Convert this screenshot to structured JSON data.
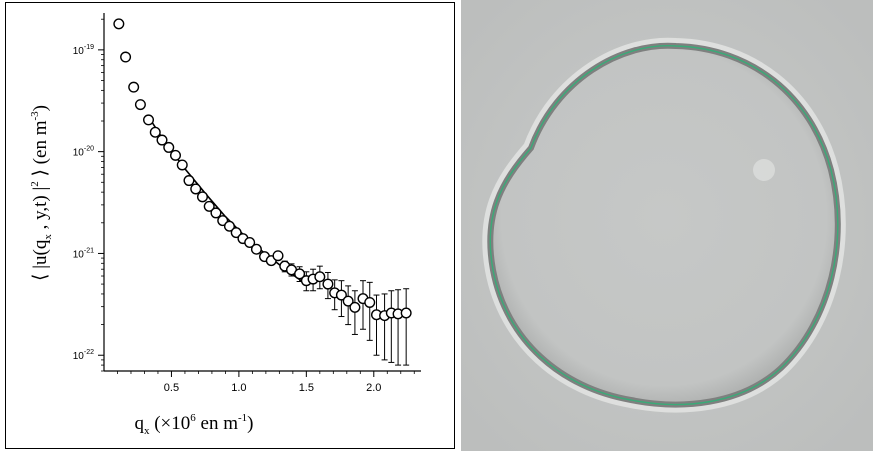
{
  "chart_data": {
    "type": "scatter",
    "title": "",
    "xlabel": {
      "base": "q",
      "sub": "x",
      "open": " (×10",
      "sup": "6",
      "mid": " en m",
      "sup2": "-1",
      "close": ")"
    },
    "ylabel": {
      "open": "⟨ |u(q",
      "sub": "x",
      "mid": " , y,t) |",
      "sup": "2",
      "close": " ⟩  (en m",
      "sup2": "-3",
      "end": ")"
    },
    "xlim": [
      0,
      2.35
    ],
    "ylim": [
      7e-23,
      2.2e-19
    ],
    "y_scale": "log",
    "x_ticks": [
      "0.5",
      "1.0",
      "1.5",
      "2.0"
    ],
    "y_ticks": [
      {
        "base": "10",
        "exp": "-19",
        "value": 1e-19
      },
      {
        "base": "10",
        "exp": "-20",
        "value": 1e-20
      },
      {
        "base": "10",
        "exp": "-21",
        "value": 1e-21
      },
      {
        "base": "10",
        "exp": "-22",
        "value": 1e-22
      }
    ],
    "points": [
      {
        "x": 0.11,
        "y": 1.8e-19
      },
      {
        "x": 0.16,
        "y": 8.5e-20
      },
      {
        "x": 0.22,
        "y": 4.3e-20
      },
      {
        "x": 0.27,
        "y": 2.9e-20
      },
      {
        "x": 0.33,
        "y": 2.05e-20
      },
      {
        "x": 0.38,
        "y": 1.55e-20
      },
      {
        "x": 0.43,
        "y": 1.3e-20
      },
      {
        "x": 0.48,
        "y": 1.1e-20
      },
      {
        "x": 0.53,
        "y": 9.2e-21
      },
      {
        "x": 0.58,
        "y": 7.4e-21
      },
      {
        "x": 0.63,
        "y": 5.2e-21
      },
      {
        "x": 0.68,
        "y": 4.3e-21
      },
      {
        "x": 0.73,
        "y": 3.6e-21
      },
      {
        "x": 0.78,
        "y": 2.9e-21
      },
      {
        "x": 0.83,
        "y": 2.5e-21
      },
      {
        "x": 0.88,
        "y": 2.1e-21
      },
      {
        "x": 0.93,
        "y": 1.85e-21
      },
      {
        "x": 0.98,
        "y": 1.6e-21
      },
      {
        "x": 1.03,
        "y": 1.4e-21
      },
      {
        "x": 1.08,
        "y": 1.28e-21
      },
      {
        "x": 1.13,
        "y": 1.1e-21
      },
      {
        "x": 1.19,
        "y": 9.3e-22
      },
      {
        "x": 1.24,
        "y": 8.5e-22
      },
      {
        "x": 1.29,
        "y": 9.5e-22
      },
      {
        "x": 1.34,
        "y": 7.5e-22
      },
      {
        "x": 1.39,
        "y": 6.9e-22
      },
      {
        "x": 1.45,
        "y": 6.3e-22
      },
      {
        "x": 1.5,
        "y": 5.4e-22
      },
      {
        "x": 1.55,
        "y": 5.6e-22
      },
      {
        "x": 1.6,
        "y": 5.9e-22
      },
      {
        "x": 1.66,
        "y": 5e-22
      },
      {
        "x": 1.71,
        "y": 4.1e-22
      },
      {
        "x": 1.76,
        "y": 3.9e-22
      },
      {
        "x": 1.81,
        "y": 3.4e-22
      },
      {
        "x": 1.86,
        "y": 2.95e-22
      },
      {
        "x": 1.92,
        "y": 3.6e-22
      },
      {
        "x": 1.97,
        "y": 3.3e-22
      },
      {
        "x": 2.02,
        "y": 2.5e-22
      },
      {
        "x": 2.08,
        "y": 2.45e-22
      },
      {
        "x": 2.13,
        "y": 2.6e-22
      },
      {
        "x": 2.18,
        "y": 2.55e-22
      },
      {
        "x": 2.24,
        "y": 2.6e-22
      }
    ],
    "error_bars": [
      {
        "x": 1.34,
        "lo": 6.6e-22,
        "hi": 8.4e-22
      },
      {
        "x": 1.39,
        "lo": 6e-22,
        "hi": 7.9e-22
      },
      {
        "x": 1.45,
        "lo": 5.3e-22,
        "hi": 7.4e-22
      },
      {
        "x": 1.5,
        "lo": 4.3e-22,
        "hi": 6.6e-22
      },
      {
        "x": 1.55,
        "lo": 4.3e-22,
        "hi": 7e-22
      },
      {
        "x": 1.6,
        "lo": 4.5e-22,
        "hi": 7.5e-22
      },
      {
        "x": 1.66,
        "lo": 3.6e-22,
        "hi": 6.5e-22
      },
      {
        "x": 1.71,
        "lo": 2.8e-22,
        "hi": 5.5e-22
      },
      {
        "x": 1.76,
        "lo": 2.4e-22,
        "hi": 5.4e-22
      },
      {
        "x": 1.81,
        "lo": 2e-22,
        "hi": 4.8e-22
      },
      {
        "x": 1.86,
        "lo": 1.6e-22,
        "hi": 4.3e-22
      },
      {
        "x": 1.92,
        "lo": 1.8e-22,
        "hi": 5.4e-22
      },
      {
        "x": 1.97,
        "lo": 1.4e-22,
        "hi": 5.2e-22
      },
      {
        "x": 2.02,
        "lo": 1e-22,
        "hi": 3.9e-22
      },
      {
        "x": 2.08,
        "lo": 9e-23,
        "hi": 4e-22
      },
      {
        "x": 2.13,
        "lo": 8.5e-23,
        "hi": 4.3e-22
      },
      {
        "x": 2.18,
        "lo": 8e-23,
        "hi": 4.4e-22
      },
      {
        "x": 2.24,
        "lo": 8e-23,
        "hi": 4.5e-22
      }
    ],
    "fit_line": [
      {
        "x": 0.33,
        "y": 2.2e-20
      },
      {
        "x": 0.45,
        "y": 1.25e-20
      },
      {
        "x": 0.6,
        "y": 6.8e-21
      },
      {
        "x": 0.75,
        "y": 3.9e-21
      },
      {
        "x": 0.9,
        "y": 2.3e-21
      },
      {
        "x": 1.05,
        "y": 1.45e-21
      },
      {
        "x": 1.2,
        "y": 9.8e-22
      },
      {
        "x": 1.35,
        "y": 6.9e-22
      },
      {
        "x": 1.47,
        "y": 5.3e-22
      }
    ],
    "grid": false,
    "legend": "none"
  },
  "image_panel": {
    "description_colors": {
      "background": "#c4c6c5",
      "contour": "#3aaa78"
    }
  }
}
